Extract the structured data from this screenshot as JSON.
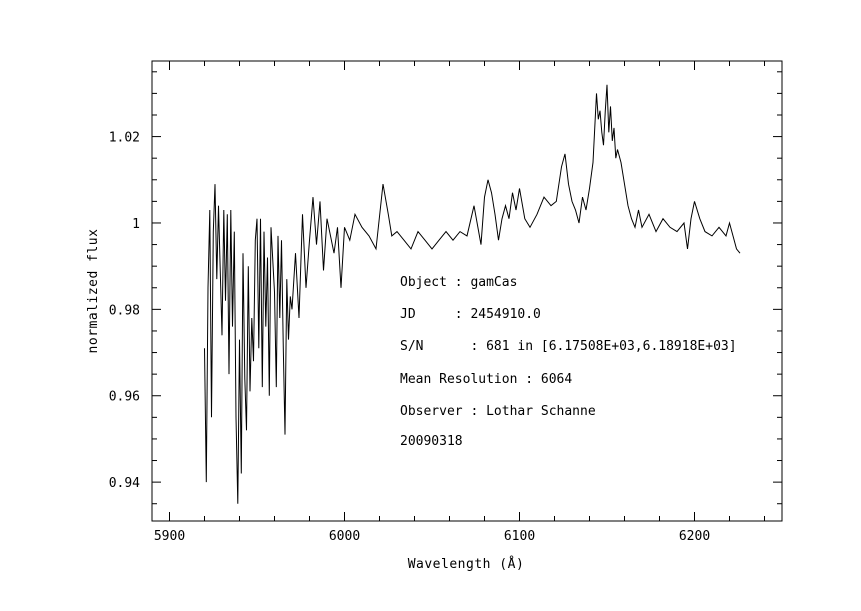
{
  "chart_data": {
    "type": "line",
    "xlabel": "Wavelength (Å)",
    "ylabel": "normalized flux",
    "xlim": [
      5890,
      6250
    ],
    "ylim": [
      0.931,
      1.0375
    ],
    "x_ticks": [
      5900,
      6000,
      6100,
      6200
    ],
    "x_tick_labels": [
      "5900",
      "6000",
      "6100",
      "6200"
    ],
    "y_ticks": [
      0.94,
      0.96,
      0.98,
      1.0,
      1.02
    ],
    "y_tick_labels": [
      "0.94",
      "0.96",
      "0.98",
      "1",
      "1.02"
    ],
    "grid": false,
    "series": [
      {
        "color": "#000000",
        "x": [
          5920,
          5921,
          5922,
          5923,
          5924,
          5925,
          5926,
          5927,
          5928,
          5930,
          5931,
          5932,
          5933,
          5934,
          5935,
          5936,
          5937,
          5938,
          5939,
          5940,
          5941,
          5942,
          5943,
          5944,
          5945,
          5946,
          5947,
          5948,
          5949,
          5950,
          5951,
          5952,
          5953,
          5954,
          5955,
          5956,
          5957,
          5958,
          5960,
          5961,
          5962,
          5963,
          5964,
          5965,
          5966,
          5967,
          5968,
          5969,
          5970,
          5972,
          5974,
          5976,
          5978,
          5980,
          5982,
          5984,
          5986,
          5988,
          5990,
          5992,
          5994,
          5996,
          5998,
          6000,
          6003,
          6006,
          6010,
          6014,
          6018,
          6022,
          6025,
          6027,
          6030,
          6034,
          6038,
          6042,
          6046,
          6050,
          6054,
          6058,
          6062,
          6066,
          6070,
          6074,
          6078,
          6080,
          6082,
          6084,
          6086,
          6088,
          6090,
          6092,
          6094,
          6096,
          6098,
          6100,
          6103,
          6106,
          6110,
          6114,
          6118,
          6121,
          6124,
          6126,
          6128,
          6130,
          6132,
          6134,
          6136,
          6138,
          6140,
          6142,
          6144,
          6145,
          6146,
          6147,
          6148,
          6149,
          6150,
          6151,
          6152,
          6153,
          6154,
          6155,
          6156,
          6158,
          6160,
          6162,
          6164,
          6166,
          6168,
          6170,
          6174,
          6178,
          6182,
          6186,
          6190,
          6194,
          6196,
          6198,
          6200,
          6203,
          6206,
          6210,
          6214,
          6218,
          6220,
          6222,
          6224,
          6226
        ],
        "y": [
          0.971,
          0.94,
          0.985,
          1.003,
          0.955,
          0.998,
          1.009,
          0.987,
          1.004,
          0.974,
          1.003,
          0.982,
          1.002,
          0.965,
          1.003,
          0.976,
          0.998,
          0.955,
          0.935,
          0.973,
          0.942,
          0.993,
          0.964,
          0.952,
          0.99,
          0.961,
          0.978,
          0.968,
          0.996,
          1.001,
          0.971,
          1.001,
          0.962,
          0.998,
          0.976,
          0.992,
          0.96,
          0.999,
          0.984,
          0.962,
          0.997,
          0.978,
          0.996,
          0.971,
          0.951,
          0.987,
          0.973,
          0.983,
          0.98,
          0.993,
          0.978,
          1.002,
          0.985,
          0.996,
          1.006,
          0.995,
          1.005,
          0.989,
          1.001,
          0.997,
          0.993,
          0.999,
          0.985,
          0.999,
          0.996,
          1.002,
          0.999,
          0.997,
          0.994,
          1.009,
          1.002,
          0.997,
          0.998,
          0.996,
          0.994,
          0.998,
          0.996,
          0.994,
          0.996,
          0.998,
          0.996,
          0.998,
          0.997,
          1.004,
          0.995,
          1.006,
          1.01,
          1.007,
          1.002,
          0.996,
          1.001,
          1.004,
          1.001,
          1.007,
          1.003,
          1.008,
          1.001,
          0.999,
          1.002,
          1.006,
          1.004,
          1.005,
          1.013,
          1.016,
          1.009,
          1.005,
          1.003,
          1.0,
          1.006,
          1.003,
          1.008,
          1.014,
          1.03,
          1.024,
          1.026,
          1.021,
          1.018,
          1.026,
          1.032,
          1.021,
          1.027,
          1.019,
          1.022,
          1.015,
          1.017,
          1.014,
          1.009,
          1.004,
          1.001,
          0.999,
          1.003,
          0.999,
          1.002,
          0.998,
          1.001,
          0.999,
          0.998,
          1.0,
          0.994,
          1.001,
          1.005,
          1.001,
          0.998,
          0.997,
          0.999,
          0.997,
          1.0,
          0.997,
          0.994,
          0.993
        ]
      }
    ]
  },
  "annotations": {
    "object": "Object : gamCas",
    "jd": "JD     : 2454910.0",
    "sn": "S/N      : 681 in [6.17508E+03,6.18918E+03]",
    "resolution": "Mean Resolution : 6064",
    "observer": "Observer : Lothar Schanne",
    "date": "20090318"
  }
}
